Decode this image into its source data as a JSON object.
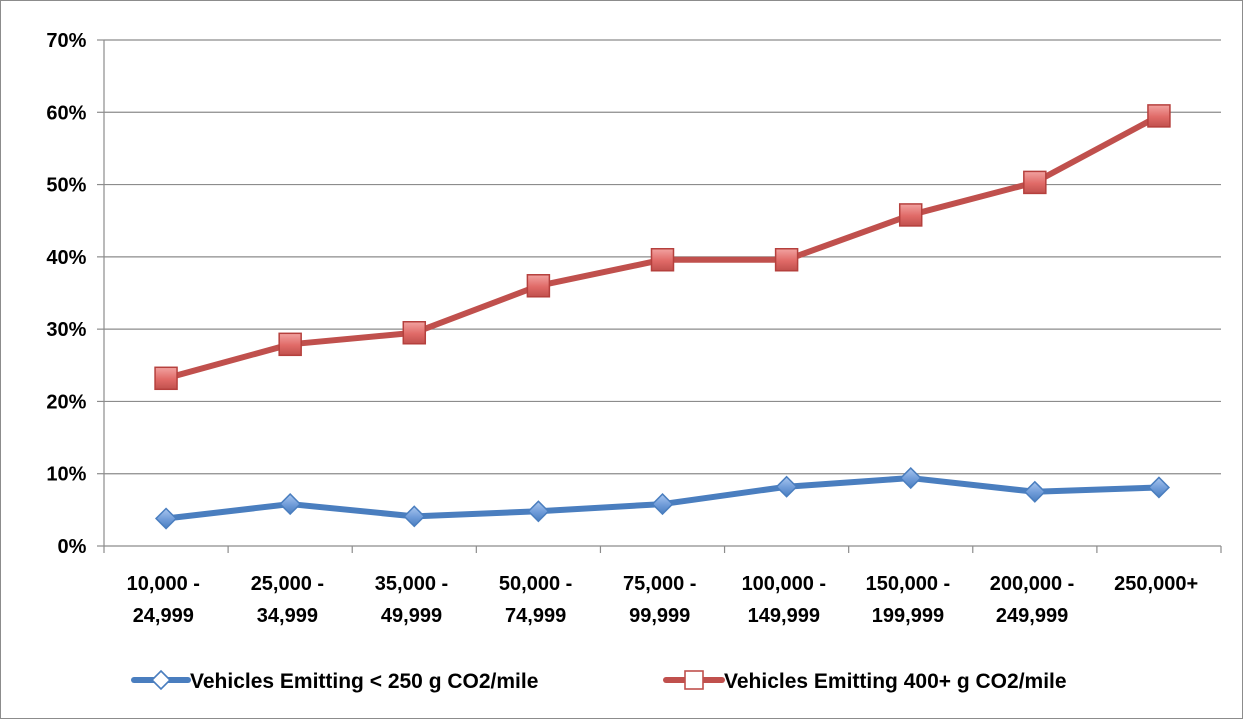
{
  "chart_data": {
    "type": "line",
    "categories": [
      [
        "10,000 - ",
        "24,999 "
      ],
      [
        "25,000 - ",
        "34,999 "
      ],
      [
        "35,000 - ",
        "49,999 "
      ],
      [
        "50,000 - ",
        "74,999 "
      ],
      [
        "75,000 - ",
        "99,999 "
      ],
      [
        "100,000 - ",
        "149,999 "
      ],
      [
        "150,000 - ",
        "199,999 "
      ],
      [
        "200,000 - ",
        "249,999 "
      ],
      [
        "250,000+ ",
        ""
      ]
    ],
    "ylim": [
      0,
      70
    ],
    "y_ticks": [
      {
        "value": 0,
        "label": "0% "
      },
      {
        "value": 10,
        "label": "10% "
      },
      {
        "value": 20,
        "label": "20% "
      },
      {
        "value": 30,
        "label": "30% "
      },
      {
        "value": 40,
        "label": "40% "
      },
      {
        "value": 50,
        "label": "50% "
      },
      {
        "value": 60,
        "label": "60% "
      },
      {
        "value": 70,
        "label": "70% "
      }
    ],
    "grid": true,
    "legend_position": "bottom",
    "series": [
      {
        "name": "Vehicles Emitting < 250 g CO2/mile ",
        "color": "#4a7ebf",
        "marker": "diamond",
        "values": [
          3.8,
          5.8,
          4.1,
          4.8,
          5.8,
          8.2,
          9.4,
          7.5,
          8.1
        ]
      },
      {
        "name": "Vehicles Emitting 400+ g CO2/mile ",
        "color": "#c0504d",
        "marker": "square",
        "values": [
          23.2,
          27.9,
          29.5,
          36.0,
          39.6,
          39.6,
          45.8,
          50.3,
          59.5
        ]
      }
    ],
    "xlabel": "",
    "ylabel": ""
  }
}
